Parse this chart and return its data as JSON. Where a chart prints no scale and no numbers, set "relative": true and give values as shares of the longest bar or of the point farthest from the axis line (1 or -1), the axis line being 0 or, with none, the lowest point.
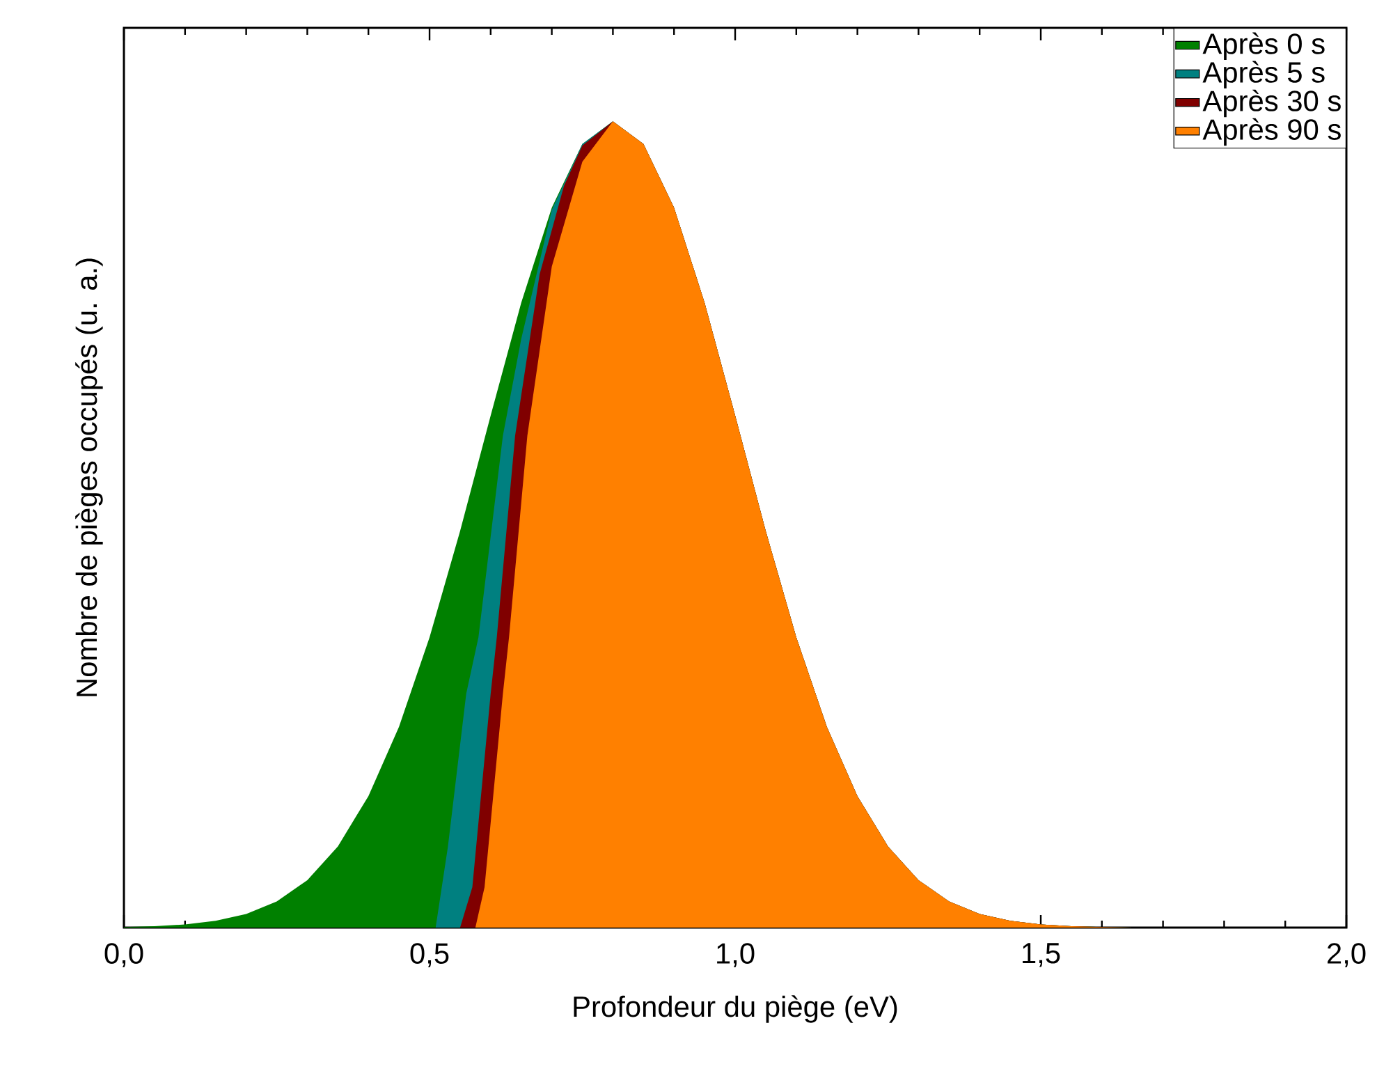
{
  "chart_data": {
    "type": "area",
    "relative": true,
    "xlabel": "Profondeur du piège (eV)",
    "ylabel": "Nombre de pièges occupés (u. a.)",
    "xlim": [
      0,
      2.0
    ],
    "xticks": [
      {
        "value": 0,
        "label": "0,0"
      },
      {
        "value": 0.5,
        "label": "0,5"
      },
      {
        "value": 1.0,
        "label": "1,0"
      },
      {
        "value": 1.5,
        "label": "1,5"
      },
      {
        "value": 2.0,
        "label": "2,0"
      }
    ],
    "legend": "top right",
    "series": [
      {
        "name": "Après 0 s",
        "color": "#008000",
        "x": [
          0,
          0.05,
          0.1,
          0.15,
          0.2,
          0.25,
          0.3,
          0.35,
          0.4,
          0.45,
          0.5,
          0.55,
          0.6,
          0.65,
          0.7,
          0.75,
          0.8,
          0.85,
          0.9,
          0.95,
          1.0,
          1.05,
          1.1,
          1.15,
          1.2,
          1.25,
          1.3,
          1.35,
          1.4,
          1.45,
          1.5,
          1.55,
          1.6,
          1.65,
          1.7,
          2.0
        ],
        "values": [
          0.0007,
          0.0017,
          0.0039,
          0.0083,
          0.0169,
          0.0324,
          0.0588,
          0.1007,
          0.163,
          0.249,
          0.36,
          0.492,
          0.635,
          0.775,
          0.893,
          0.972,
          1,
          0.972,
          0.893,
          0.775,
          0.635,
          0.492,
          0.36,
          0.249,
          0.163,
          0.1007,
          0.0588,
          0.0324,
          0.0169,
          0.0083,
          0.0039,
          0.0017,
          0.0007,
          0,
          0,
          0
        ]
      },
      {
        "name": "Après 5 s",
        "color": "#008080",
        "x": [
          0.51,
          0.53,
          0.56,
          0.58,
          0.62,
          0.65,
          0.7,
          0.75,
          0.8,
          0.85,
          0.9,
          0.95,
          1.0,
          1.05,
          1.1,
          1.15,
          1.2,
          1.25,
          1.3,
          1.35,
          1.4,
          1.45,
          1.5,
          1.55,
          1.6,
          1.65
        ],
        "values": [
          0,
          0.1,
          0.29,
          0.36,
          0.61,
          0.73,
          0.89,
          0.972,
          1,
          0.972,
          0.893,
          0.775,
          0.635,
          0.492,
          0.36,
          0.249,
          0.163,
          0.1007,
          0.0588,
          0.0324,
          0.0169,
          0.0083,
          0.0039,
          0.0017,
          0.0007,
          0
        ]
      },
      {
        "name": "Après 30 s",
        "color": "#800000",
        "x": [
          0.55,
          0.57,
          0.6,
          0.61,
          0.64,
          0.68,
          0.72,
          0.75,
          0.8,
          0.85,
          0.9,
          0.95,
          1.0,
          1.05,
          1.1,
          1.15,
          1.2,
          1.25,
          1.3,
          1.35,
          1.4,
          1.45,
          1.5,
          1.55,
          1.6,
          1.65
        ],
        "values": [
          0,
          0.05,
          0.29,
          0.36,
          0.61,
          0.81,
          0.92,
          0.97,
          1,
          0.972,
          0.893,
          0.775,
          0.635,
          0.492,
          0.36,
          0.249,
          0.163,
          0.1007,
          0.0588,
          0.0324,
          0.0169,
          0.0083,
          0.0039,
          0.0017,
          0.0007,
          0
        ]
      },
      {
        "name": "Après 90 s",
        "color": "#ff8000",
        "x": [
          0.575,
          0.59,
          0.62,
          0.63,
          0.66,
          0.7,
          0.75,
          0.8,
          0.85,
          0.9,
          0.95,
          1.0,
          1.05,
          1.1,
          1.15,
          1.2,
          1.25,
          1.3,
          1.35,
          1.4,
          1.45,
          1.5,
          1.55,
          1.6,
          1.65
        ],
        "values": [
          0,
          0.05,
          0.29,
          0.36,
          0.61,
          0.82,
          0.95,
          1,
          0.972,
          0.893,
          0.775,
          0.635,
          0.492,
          0.36,
          0.249,
          0.163,
          0.1007,
          0.0588,
          0.0324,
          0.0169,
          0.0083,
          0.0039,
          0.0017,
          0.0007,
          0
        ]
      }
    ]
  }
}
